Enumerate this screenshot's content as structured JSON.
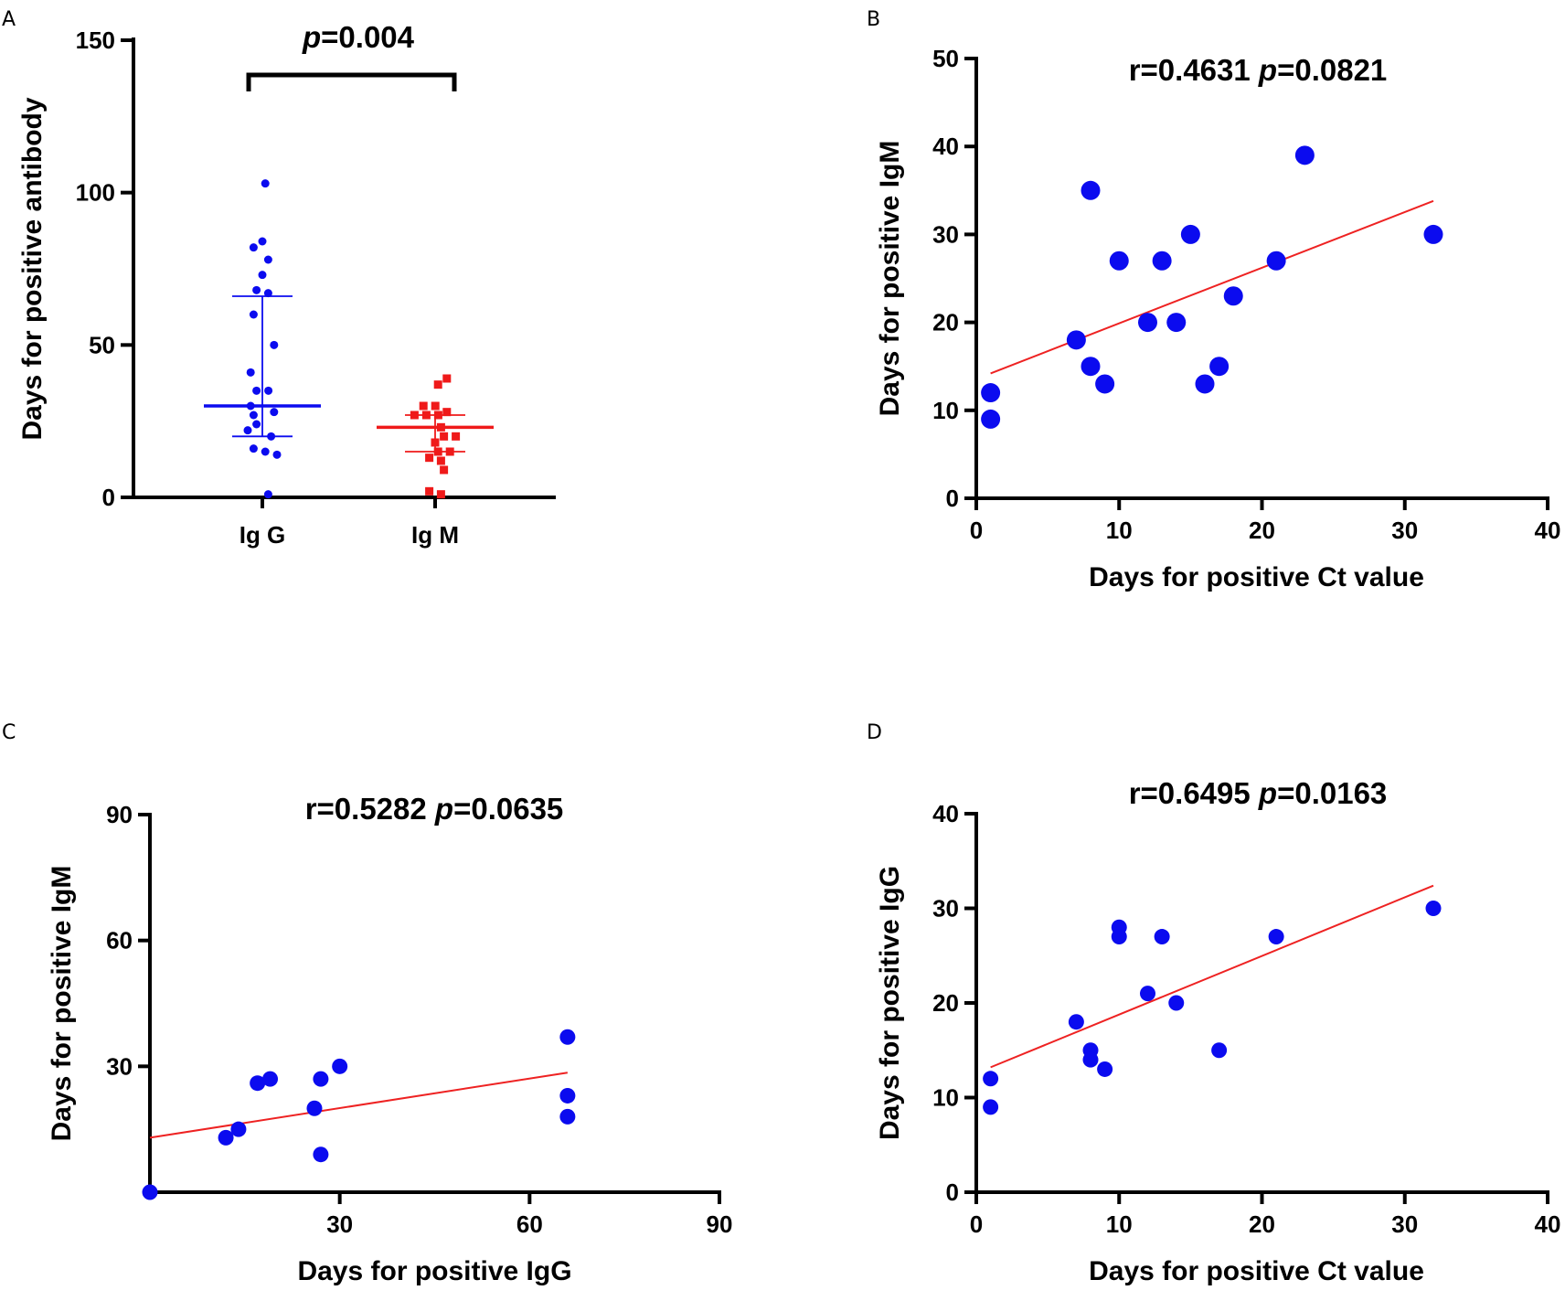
{
  "chart_data": [
    {
      "panel": "A",
      "type": "scatter",
      "title": "",
      "xlabel": "",
      "ylabel": "Days  for positive antibody",
      "categories": [
        "Ig G",
        "Ig M"
      ],
      "ylim": [
        0,
        150
      ],
      "yticks": [
        "0",
        "50",
        "100",
        "150"
      ],
      "significance": {
        "label_italic": "p",
        "label_rest": "=0.004",
        "between": [
          "Ig G",
          "Ig M"
        ]
      },
      "series": [
        {
          "name": "Ig G",
          "color": "#0b0bef",
          "marker": "circle",
          "values": [
            103,
            84,
            82,
            78,
            73,
            68,
            67,
            60,
            50,
            41,
            35,
            35,
            30,
            28,
            27,
            24,
            22,
            20,
            16,
            15,
            14,
            1
          ],
          "median": 30,
          "q1": 20,
          "q3": 66
        },
        {
          "name": "Ig M",
          "color": "#ef1a1a",
          "marker": "square",
          "values": [
            39,
            37,
            30,
            30,
            28,
            27,
            27,
            27,
            23,
            20,
            20,
            18,
            15,
            15,
            13,
            12,
            9,
            2,
            1
          ],
          "median": 23,
          "q1": 15,
          "q3": 27
        }
      ]
    },
    {
      "panel": "B",
      "type": "scatter",
      "title_r": "r=0.4631 ",
      "title_p_italic": "p",
      "title_p_rest": "=0.0821",
      "xlabel": "Days for positive Ct value",
      "ylabel": "Days for positive IgM",
      "xlim": [
        0,
        40
      ],
      "ylim": [
        0,
        50
      ],
      "xticks": [
        "0",
        "10",
        "20",
        "30",
        "40"
      ],
      "yticks": [
        "0",
        "10",
        "20",
        "30",
        "40",
        "50"
      ],
      "points": {
        "color": "#0b0bef",
        "x": [
          1,
          1,
          7,
          8,
          8,
          9,
          10,
          12,
          13,
          14,
          15,
          16,
          17,
          18,
          21,
          23,
          32
        ],
        "y": [
          12,
          9,
          18,
          35,
          15,
          13,
          27,
          20,
          27,
          20,
          30,
          13,
          15,
          23,
          27,
          39,
          30
        ]
      },
      "fit": {
        "color": "#ee2222",
        "x": [
          1,
          32
        ],
        "y": [
          14.2,
          33.8
        ]
      }
    },
    {
      "panel": "C",
      "type": "scatter",
      "title_r": "r=0.5282 ",
      "title_p_italic": "p",
      "title_p_rest": "=0.0635",
      "xlabel": "Days for positive IgG",
      "ylabel": "Days for positive IgM",
      "xlim": [
        0,
        90
      ],
      "ylim": [
        0,
        90
      ],
      "xticks": [
        "30",
        "60",
        "90"
      ],
      "yticks": [
        "30",
        "60",
        "90"
      ],
      "points": {
        "color": "#0b0bef",
        "x": [
          0,
          12,
          14,
          17,
          19,
          26,
          27,
          27,
          30,
          66,
          66,
          66
        ],
        "y": [
          0,
          13,
          15,
          26,
          27,
          20,
          27,
          9,
          30,
          37,
          23,
          18
        ]
      },
      "fit": {
        "color": "#ee2222",
        "x": [
          0,
          66
        ],
        "y": [
          13,
          28.5
        ]
      }
    },
    {
      "panel": "D",
      "type": "scatter",
      "title_r": "r=0.6495 ",
      "title_p_italic": "p",
      "title_p_rest": "=0.0163",
      "xlabel": "Days for positive Ct value",
      "ylabel": "Days for positive IgG",
      "xlim": [
        0,
        40
      ],
      "ylim": [
        0,
        40
      ],
      "xticks": [
        "0",
        "10",
        "20",
        "30",
        "40"
      ],
      "yticks": [
        "0",
        "10",
        "20",
        "30",
        "40"
      ],
      "points": {
        "color": "#0b0bef",
        "x": [
          1,
          1,
          7,
          8,
          8,
          9,
          10,
          10,
          12,
          13,
          14,
          17,
          21,
          32
        ],
        "y": [
          12,
          9,
          18,
          15,
          14,
          13,
          28,
          27,
          21,
          27,
          20,
          15,
          27,
          30
        ]
      },
      "fit": {
        "color": "#ee2222",
        "x": [
          1,
          32
        ],
        "y": [
          13.2,
          32.4
        ]
      }
    }
  ]
}
